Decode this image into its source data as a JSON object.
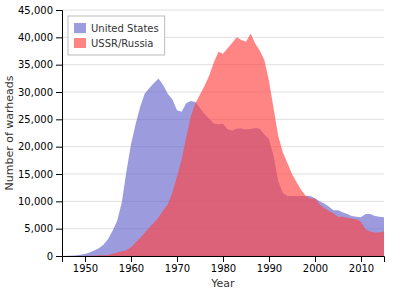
{
  "chart_data": {
    "type": "area",
    "xlabel": "Year",
    "ylabel": "Number of warheads",
    "xlim": [
      1945,
      2015
    ],
    "xticks": [
      1950,
      1960,
      1970,
      1980,
      1990,
      2000,
      2010
    ],
    "ylim": [
      0,
      45000
    ],
    "yticks": [
      0,
      {
        "value": 5000,
        "label": "5,000"
      },
      {
        "value": 10000,
        "label": "10,000"
      },
      {
        "value": 15000,
        "label": "15,000"
      },
      {
        "value": 20000,
        "label": "20,000"
      },
      {
        "value": 25000,
        "label": "25,000"
      },
      {
        "value": 30000,
        "label": "30,000"
      },
      {
        "value": 35000,
        "label": "35,000"
      },
      {
        "value": 40000,
        "label": "40,000"
      },
      {
        "value": 45000,
        "label": "45,000"
      }
    ],
    "grid": "y",
    "legend": "upper left",
    "series": [
      {
        "name": "United States",
        "color": "#6666cc",
        "x": [
          1945,
          1946,
          1947,
          1948,
          1949,
          1950,
          1951,
          1952,
          1953,
          1954,
          1955,
          1956,
          1957,
          1958,
          1959,
          1960,
          1961,
          1962,
          1963,
          1964,
          1965,
          1966,
          1967,
          1968,
          1969,
          1970,
          1971,
          1972,
          1973,
          1974,
          1975,
          1976,
          1977,
          1978,
          1979,
          1980,
          1981,
          1982,
          1983,
          1984,
          1985,
          1986,
          1987,
          1988,
          1989,
          1990,
          1991,
          1992,
          1993,
          1994,
          1995,
          1996,
          1997,
          1998,
          1999,
          2000,
          2001,
          2002,
          2003,
          2004,
          2005,
          2006,
          2007,
          2008,
          2009,
          2010,
          2011,
          2012,
          2013,
          2014,
          2015
        ],
        "values": [
          6,
          11,
          32,
          110,
          235,
          369,
          640,
          1005,
          1436,
          2063,
          3057,
          4618,
          6444,
          9822,
          15468,
          20434,
          24111,
          27297,
          29740,
          30751,
          31642,
          32450,
          31255,
          29663,
          28624,
          26660,
          26365,
          27948,
          28335,
          28170,
          27052,
          25956,
          25099,
          24243,
          24107,
          24204,
          23201,
          22937,
          23305,
          23322,
          23135,
          23254,
          23410,
          23262,
          22217,
          21392,
          18306,
          13731,
          11536,
          10979,
          10953,
          10953,
          10953,
          10953,
          10953,
          10577,
          10027,
          9618,
          9060,
          8360,
          8360,
          8000,
          7700,
          7315,
          7200,
          7100,
          7700,
          7700,
          7315,
          7200,
          7100
        ]
      },
      {
        "name": "USSR/Russia",
        "color": "#ff4444",
        "x": [
          1949,
          1950,
          1951,
          1952,
          1953,
          1954,
          1955,
          1956,
          1957,
          1958,
          1959,
          1960,
          1961,
          1962,
          1963,
          1964,
          1965,
          1966,
          1967,
          1968,
          1969,
          1970,
          1971,
          1972,
          1973,
          1974,
          1975,
          1976,
          1977,
          1978,
          1979,
          1980,
          1981,
          1982,
          1983,
          1984,
          1985,
          1986,
          1987,
          1988,
          1989,
          1990,
          1991,
          1992,
          1993,
          1994,
          1995,
          1996,
          1997,
          1998,
          1999,
          2000,
          2001,
          2002,
          2003,
          2004,
          2005,
          2006,
          2007,
          2008,
          2009,
          2010,
          2011,
          2012,
          2013,
          2014,
          2015
        ],
        "values": [
          1,
          5,
          25,
          50,
          120,
          150,
          200,
          426,
          660,
          869,
          1060,
          1605,
          2471,
          3322,
          4238,
          5221,
          6129,
          7089,
          8339,
          9399,
          11643,
          14524,
          17613,
          21705,
          25534,
          27935,
          29557,
          31157,
          33001,
          35393,
          37372,
          37000,
          38000,
          39000,
          40000,
          39500,
          39197,
          40723,
          38859,
          37600,
          35805,
          32000,
          27000,
          22000,
          19000,
          17000,
          14978,
          13500,
          12057,
          11000,
          10500,
          10500,
          9434,
          8800,
          8232,
          7800,
          7200,
          7200,
          7000,
          6857,
          6716,
          6257,
          4850,
          4500,
          4300,
          4300,
          4500
        ]
      }
    ]
  }
}
